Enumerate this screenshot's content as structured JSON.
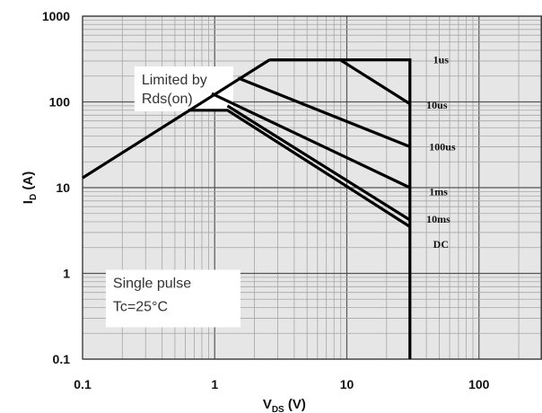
{
  "chart_data": {
    "type": "line",
    "xscale": "log",
    "yscale": "log",
    "xlim": [
      0.1,
      300
    ],
    "ylim": [
      0.1,
      1000
    ],
    "grid": true,
    "xlabel": "V",
    "xlabel_sub": "DS",
    "xlabel_unit": " (V)",
    "ylabel": "I",
    "ylabel_sub": "D",
    "ylabel_unit": " (A)",
    "x_ticks": [
      {
        "value": 0.1,
        "label": "0.1"
      },
      {
        "value": 1,
        "label": "1"
      },
      {
        "value": 10,
        "label": "10"
      },
      {
        "value": 100,
        "label": "100"
      }
    ],
    "y_ticks": [
      {
        "value": 0.1,
        "label": "0.1"
      },
      {
        "value": 1,
        "label": "1"
      },
      {
        "value": 10,
        "label": "10"
      },
      {
        "value": 100,
        "label": "100"
      },
      {
        "value": 1000,
        "label": "1000"
      }
    ],
    "series": [
      {
        "name": "Limited by Rds(on)",
        "points": [
          [
            0.1,
            13
          ],
          [
            2.6,
            310
          ]
        ]
      },
      {
        "name": "1us",
        "points": [
          [
            2.6,
            310
          ],
          [
            30,
            310
          ],
          [
            30,
            0.1
          ]
        ]
      },
      {
        "name": "10us",
        "points": [
          [
            2.6,
            310
          ],
          [
            8.9,
            310
          ],
          [
            30,
            95
          ]
        ]
      },
      {
        "name": "100us",
        "points": [
          [
            1.5,
            190
          ],
          [
            30,
            30
          ]
        ]
      },
      {
        "name": "1ms",
        "points": [
          [
            0.95,
            125
          ],
          [
            30,
            10
          ]
        ]
      },
      {
        "name": "10ms",
        "points": [
          [
            1.25,
            90
          ],
          [
            30,
            4.2
          ]
        ]
      },
      {
        "name": "DC",
        "points": [
          [
            0.63,
            80
          ],
          [
            1.25,
            80
          ],
          [
            30,
            3.5
          ]
        ]
      }
    ],
    "series_labels": [
      {
        "text": "1us",
        "at": [
          45,
          310
        ]
      },
      {
        "text": "10us",
        "at": [
          40,
          92
        ]
      },
      {
        "text": "100us",
        "at": [
          42,
          30
        ]
      },
      {
        "text": "1ms",
        "at": [
          42,
          9
        ]
      },
      {
        "text": "10ms",
        "at": [
          40,
          4.3
        ]
      },
      {
        "text": "DC",
        "at": [
          45,
          2.2
        ]
      }
    ],
    "annotations": [
      {
        "lines": [
          "Limited by",
          "Rds(on)"
        ],
        "at": [
          0.28,
          160
        ]
      },
      {
        "lines": [
          "Single pulse",
          "Tc=25°C"
        ],
        "at": [
          0.17,
          0.68
        ]
      }
    ]
  }
}
